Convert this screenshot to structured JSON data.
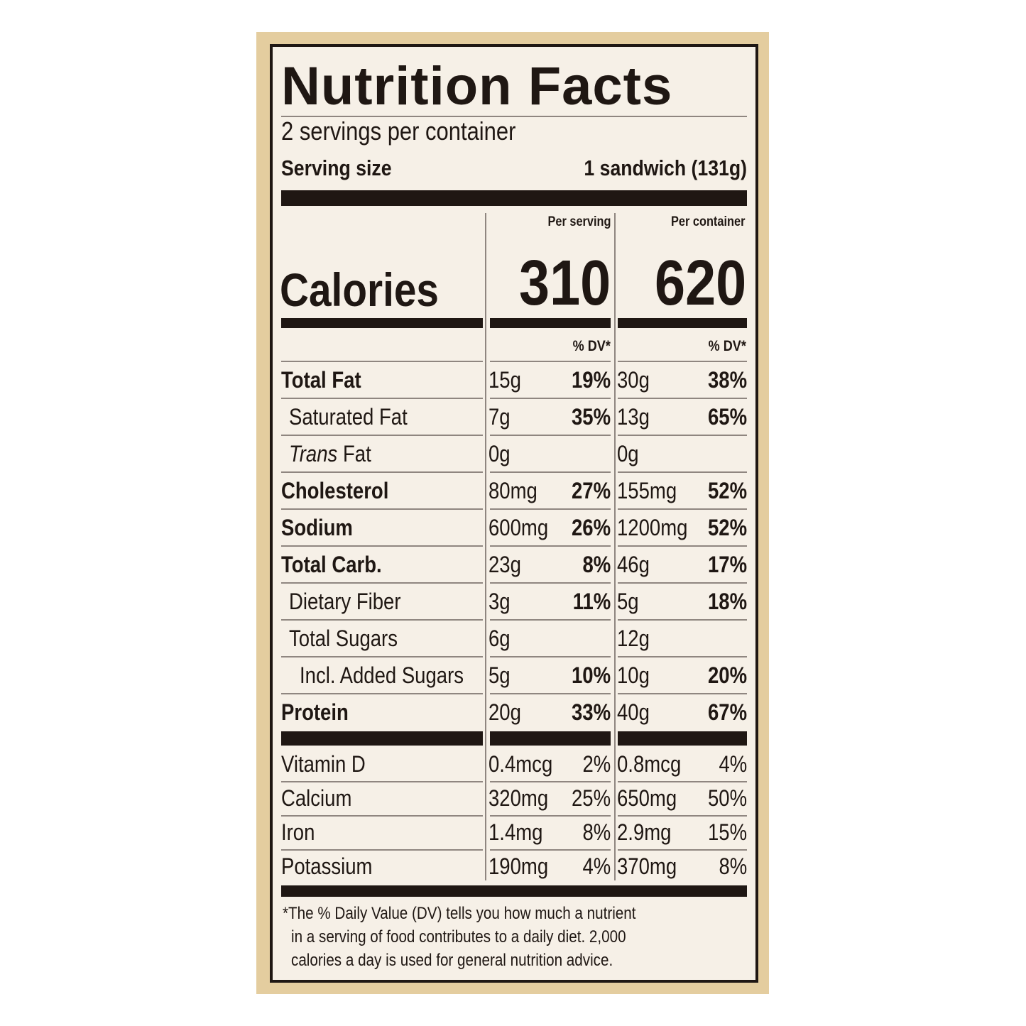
{
  "title": "Nutrition Facts",
  "servings_per_container": "2 servings per container",
  "serving_size_label": "Serving size",
  "serving_size_value": "1 sandwich (131g)",
  "columns": {
    "per_serving": "Per serving",
    "per_container": "Per container",
    "dv_label": "% DV*"
  },
  "calories": {
    "label": "Calories",
    "per_serving": "310",
    "per_container": "620"
  },
  "nutrients": [
    {
      "name": "Total Fat",
      "bold": true,
      "indent": 0,
      "ps_amt": "15g",
      "ps_dv": "19%",
      "pc_amt": "30g",
      "pc_dv": "38%"
    },
    {
      "name": "Saturated Fat",
      "bold": false,
      "indent": 1,
      "ps_amt": "7g",
      "ps_dv": "35%",
      "pc_amt": "13g",
      "pc_dv": "65%"
    },
    {
      "name_italic": "Trans",
      "name": " Fat",
      "bold": false,
      "indent": 1,
      "ps_amt": "0g",
      "ps_dv": "",
      "pc_amt": "0g",
      "pc_dv": ""
    },
    {
      "name": "Cholesterol",
      "bold": true,
      "indent": 0,
      "ps_amt": "80mg",
      "ps_dv": "27%",
      "pc_amt": "155mg",
      "pc_dv": "52%"
    },
    {
      "name": "Sodium",
      "bold": true,
      "indent": 0,
      "ps_amt": "600mg",
      "ps_dv": "26%",
      "pc_amt": "1200mg",
      "pc_dv": "52%"
    },
    {
      "name": "Total Carb.",
      "bold": true,
      "indent": 0,
      "ps_amt": "23g",
      "ps_dv": "8%",
      "pc_amt": "46g",
      "pc_dv": "17%"
    },
    {
      "name": "Dietary Fiber",
      "bold": false,
      "indent": 1,
      "ps_amt": "3g",
      "ps_dv": "11%",
      "pc_amt": "5g",
      "pc_dv": "18%"
    },
    {
      "name": "Total Sugars",
      "bold": false,
      "indent": 1,
      "ps_amt": "6g",
      "ps_dv": "",
      "pc_amt": "12g",
      "pc_dv": ""
    },
    {
      "name": "Incl. Added Sugars",
      "bold": false,
      "indent": 2,
      "ps_amt": "5g",
      "ps_dv": "10%",
      "pc_amt": "10g",
      "pc_dv": "20%"
    },
    {
      "name": "Protein",
      "bold": true,
      "indent": 0,
      "ps_amt": "20g",
      "ps_dv": "33%",
      "pc_amt": "40g",
      "pc_dv": "67%"
    }
  ],
  "vitamins": [
    {
      "name": "Vitamin D",
      "ps_amt": "0.4mcg",
      "ps_dv": "2%",
      "pc_amt": "0.8mcg",
      "pc_dv": "4%"
    },
    {
      "name": "Calcium",
      "ps_amt": "320mg",
      "ps_dv": "25%",
      "pc_amt": "650mg",
      "pc_dv": "50%"
    },
    {
      "name": "Iron",
      "ps_amt": "1.4mg",
      "ps_dv": "8%",
      "pc_amt": "2.9mg",
      "pc_dv": "15%"
    },
    {
      "name": "Potassium",
      "ps_amt": "190mg",
      "ps_dv": "4%",
      "pc_amt": "370mg",
      "pc_dv": "8%"
    }
  ],
  "footnote": [
    "*The % Daily Value (DV) tells you how much a nutrient",
    "in a serving of food contributes to a daily diet. 2,000",
    "calories a day is used for general nutrition advice."
  ],
  "colors": {
    "background": "#e4cd9f",
    "label": "#f6f0e7",
    "ink": "#1f1713"
  }
}
